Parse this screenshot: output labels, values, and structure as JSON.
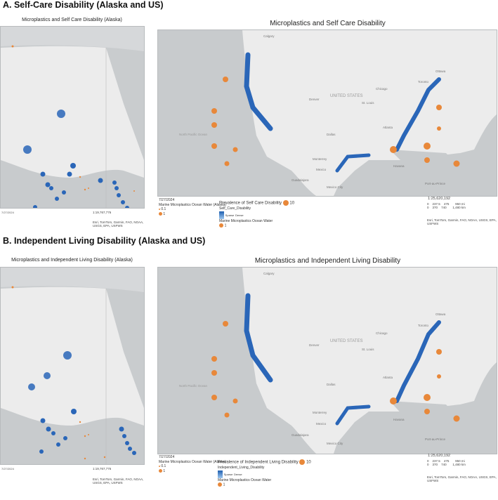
{
  "sections": [
    {
      "heading": "A. Self-Care Disability (Alaska and US)",
      "alaska_title": "Microplastics and Self Care Disability (Alaska)",
      "us_title": "Microplastics and Self Care Disability",
      "date": "7/27/2024",
      "legend_ocean_label": "Marine Microplastics Ocean Water (Alaska)",
      "legend_small": "0.1",
      "legend_one": "1",
      "prevalence_label": "Prevalence of Self Care Disability",
      "prevalence_ten": "10",
      "layer_name": "Self_Care_Disability",
      "ramp_dense": "Sparse",
      "ramp_sparse": "Dense",
      "ocean_water": "Marine Microplastics Ocean Water",
      "ocean_one": "1",
      "scale_ratio": "1:25,620,192",
      "scale_mi": [
        "0",
        "237.5",
        "475",
        "950 mi"
      ],
      "scale_km": [
        "0",
        "370",
        "740",
        "1,480 km"
      ],
      "attribution": "Esri, TomTom, Garmin, FAO, NOAA, USGS, EPA, USFWS",
      "ak_date": "7/27/2024",
      "ak_scale_ratio": "1:19,767,776",
      "ak_attribution": "Esri, TomTom, Garmin, FAO, NOAA, USGS, EPA, USFWS"
    },
    {
      "heading": "B. Independent Living Disability (Alaska and US)",
      "alaska_title": "Microplastics and Independent Living Disability (Alaska)",
      "us_title": "Microplastics and Independent Living Disability",
      "date": "7/27/2024",
      "legend_ocean_label": "Marine Microplastics Ocean Water (Alaska)",
      "legend_small": "0.1",
      "legend_one": "1",
      "prevalence_label": "Prevalence of Independent Living Disability",
      "prevalence_ten": "10",
      "layer_name": "Independent_Living_Disability",
      "ramp_dense": "Sparse",
      "ramp_sparse": "Dense",
      "ocean_water": "Marine Microplastics Ocean Water",
      "ocean_one": "1",
      "scale_ratio": "1:25,620,192",
      "scale_mi": [
        "0",
        "237.5",
        "475",
        "950 mi"
      ],
      "scale_km": [
        "0",
        "370",
        "740",
        "1,480 km"
      ],
      "attribution": "Esri, TomTom, Garmin, FAO, NOAA, USGS, EPA, USFWS",
      "ak_date": "7/27/2024",
      "ak_scale_ratio": "1:19,767,776",
      "ak_attribution": "Esri, TomTom, Garmin, FAO, NOAA, USGS, EPA, USFWS"
    }
  ],
  "place_labels": {
    "calgary": "Calgary",
    "ottawa": "Ottawa",
    "toronto": "Toronto",
    "chicago": "Chicago",
    "denver": "Denver",
    "united_states": "UNITED STATES",
    "st_louis": "St. Louis",
    "dallas": "Dallas",
    "atlanta": "Atlanta",
    "monterrey": "Monterrey",
    "mexico": "Mexico",
    "guadalajara": "Guadalajara",
    "mexico_city": "Mexico City",
    "havana": "Havana",
    "port_au_prince": "Port-au-Prince",
    "north_pacific_ocean": "North Pacific Ocean"
  },
  "colors": {
    "land": "#ececec",
    "water": "#c8cbcd",
    "microplastics": "#e8883a",
    "disability": "#2a66b8"
  }
}
